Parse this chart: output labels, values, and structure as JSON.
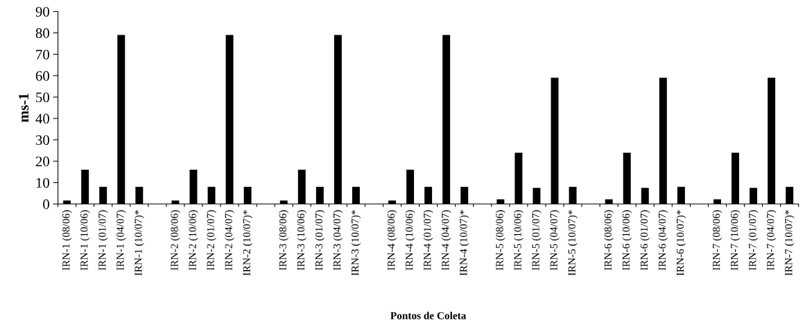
{
  "chart_data": {
    "type": "bar",
    "xlabel": "Pontos de Coleta",
    "ylabel": "ms-1",
    "color": "#000000",
    "categories": [
      "IRN-1 (08/06)",
      "IRN-1 (10/06)",
      "IRN-1 (01/07)",
      "IRN-1 (04/07)",
      "IRN-1 (10/07)*",
      null,
      "IRN-2 (08/06)",
      "IRN-2 (10/06)",
      "IRN-2 (01/07)",
      "IRN-2 (04/07)",
      "IRN-2 (10/07)*",
      null,
      "IRN-3 (08/06)",
      "IRN-3 (10/06)",
      "IRN-3 (01/07)",
      "IRN-3 (04/07)",
      "IRN-3 (10/07)*",
      null,
      "IRN-4 (08/06)",
      "IRN-4 (10/06)",
      "IRN-4 (01/07)",
      "IRN-4 (04/07)",
      "IRN-4 (10/07)*",
      null,
      "IRN-5 (08/06)",
      "IRN-5 (10/06)",
      "IRN-5 (01/07)",
      "IRN-5 (04/07)",
      "IRN-5 (10/07)*",
      null,
      "IRN-6 (08/06)",
      "IRN-6 (10/06)",
      "IRN-6 (01/07)",
      "IRN-6 (04/07)",
      "IRN-6 (10/07)*",
      null,
      "IRN-7 (08/06)",
      "IRN-7 (10/06)",
      "IRN-7 (01/07)",
      "IRN-7 (04/07)",
      "IRN-7 (10/07)*"
    ],
    "values": [
      1.6,
      16,
      8,
      79,
      8,
      null,
      1.6,
      16,
      8,
      79,
      8,
      null,
      1.6,
      16,
      8,
      79,
      8,
      null,
      1.6,
      16,
      8,
      79,
      8,
      null,
      2.2,
      24,
      7.5,
      59,
      8,
      null,
      2.2,
      24,
      7.5,
      59,
      8,
      null,
      2.2,
      24,
      7.5,
      59,
      8
    ],
    "ylim": [
      0,
      90
    ],
    "yticks": [
      0,
      10,
      20,
      30,
      40,
      50,
      60,
      70,
      80,
      90
    ],
    "grid": false,
    "legend": false
  }
}
